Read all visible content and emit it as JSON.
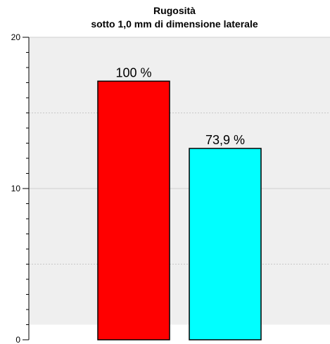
{
  "chart_data": {
    "type": "bar",
    "title": "Rugosità",
    "subtitle": "sotto 1,0 mm di dimensione laterale",
    "categories": [
      "",
      ""
    ],
    "values": [
      17.1,
      12.65
    ],
    "data_labels": [
      "100 %",
      "73,9 %"
    ],
    "bar_colors": [
      "#ff0000",
      "#00ffff"
    ],
    "ylim": [
      0,
      20
    ],
    "y_ticks": [
      0,
      10,
      20
    ],
    "y_tick_labels": [
      "0",
      "10",
      "20"
    ],
    "grid": true,
    "grid_values": [
      5,
      15
    ],
    "background_band_range": [
      1,
      20
    ],
    "plot_background": "#efefef"
  }
}
